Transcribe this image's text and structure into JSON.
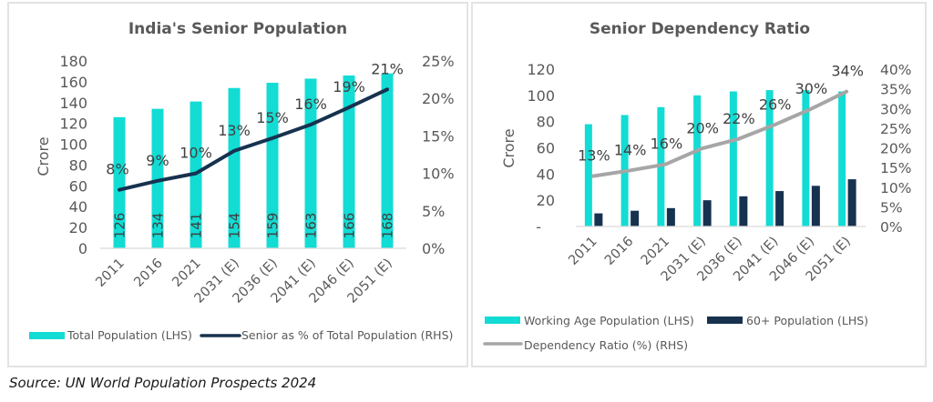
{
  "colors": {
    "teal": "#12dcd4",
    "navy": "#17324f",
    "gray_line": "#a6a6a6",
    "axis_line": "#d9d9d9",
    "text": "#595959"
  },
  "source": "Source: UN World Population Prospects 2024",
  "chart_data": [
    {
      "type": "bar",
      "title": "India's Senior Population",
      "categories": [
        "2011",
        "2016",
        "2021",
        "2031 (E)",
        "2036 (E)",
        "2041 (E)",
        "2046 (E)",
        "2051 (E)"
      ],
      "ylabel": "Crore",
      "ylim": [
        0,
        180
      ],
      "yticks": [
        "0",
        "20",
        "40",
        "60",
        "80",
        "100",
        "120",
        "140",
        "160",
        "180"
      ],
      "y2lim": [
        0,
        25
      ],
      "y2ticks": [
        "0%",
        "5%",
        "10%",
        "15%",
        "20%",
        "25%"
      ],
      "grid": false,
      "legend_position": "bottom",
      "series": [
        {
          "name": "Total Population (LHS)",
          "type": "bar",
          "axis": "left",
          "values": [
            126,
            134,
            141,
            154,
            159,
            163,
            166,
            168
          ],
          "labels": [
            "126",
            "134",
            "141",
            "154",
            "159",
            "163",
            "166",
            "168"
          ]
        },
        {
          "name": "Senior as % of Total Population (RHS)",
          "type": "line",
          "axis": "right",
          "values": [
            7.8,
            9.0,
            10.0,
            13.0,
            14.7,
            16.5,
            18.8,
            21.2
          ],
          "labels": [
            "8%",
            "9%",
            "10%",
            "13%",
            "15%",
            "16%",
            "19%",
            "21%"
          ]
        }
      ]
    },
    {
      "type": "bar",
      "title": "Senior Dependency Ratio",
      "categories": [
        "2011",
        "2016",
        "2021",
        "2031 (E)",
        "2036 (E)",
        "2041 (E)",
        "2046 (E)",
        "2051 (E)"
      ],
      "ylabel": "Crore",
      "ylim": [
        0,
        120
      ],
      "yticks": [
        "-",
        "20",
        "40",
        "60",
        "80",
        "100",
        "120"
      ],
      "y2lim": [
        0,
        40
      ],
      "y2ticks": [
        "0%",
        "5%",
        "10%",
        "15%",
        "20%",
        "25%",
        "30%",
        "35%",
        "40%"
      ],
      "grid": false,
      "legend_position": "bottom",
      "series": [
        {
          "name": "Working Age Population (LHS)",
          "type": "bar",
          "axis": "left",
          "values": [
            78,
            85,
            91,
            100,
            103,
            104,
            104,
            103
          ]
        },
        {
          "name": "60+ Population (LHS)",
          "type": "bar",
          "axis": "left",
          "values": [
            10,
            12,
            14,
            20,
            23,
            27,
            31,
            36
          ]
        },
        {
          "name": "Dependency Ratio (%) (RHS)",
          "type": "line",
          "axis": "right",
          "values": [
            12.8,
            14.2,
            15.8,
            19.8,
            22.2,
            25.8,
            29.8,
            34.3
          ],
          "labels": [
            "13%",
            "14%",
            "16%",
            "20%",
            "22%",
            "26%",
            "30%",
            "34%"
          ]
        }
      ]
    }
  ]
}
